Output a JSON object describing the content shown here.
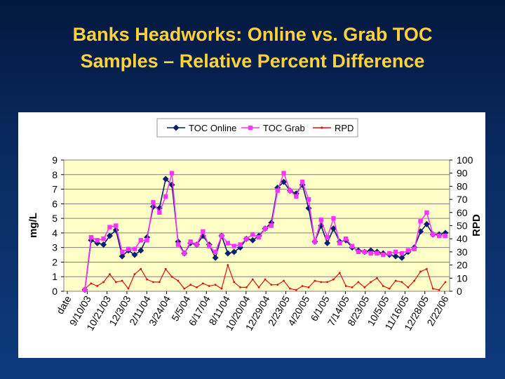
{
  "slide": {
    "title_line1": "Banks Headworks: Online vs. Grab TOC",
    "title_line2": "Samples – Relative Percent Difference"
  },
  "colors": {
    "background": "#0a2c63",
    "title": "#ffd23c",
    "plot_area": "#ffffc8",
    "toc_online": "#0a1f6e",
    "toc_grab": "#ff33ff",
    "rpd": "#dd1111"
  },
  "chart_data": {
    "type": "line",
    "title": "",
    "xlabel": "",
    "ylabel": "mg/L",
    "y2label": "RPD",
    "ylim": [
      0,
      9
    ],
    "y2lim": [
      0,
      100
    ],
    "yticks": [
      "0",
      "1",
      "2",
      "3",
      "4",
      "5",
      "6",
      "7",
      "8",
      "9"
    ],
    "y2ticks": [
      "0",
      "10",
      "20",
      "30",
      "40",
      "50",
      "60",
      "70",
      "80",
      "90",
      "100"
    ],
    "grid": true,
    "legend_position": "top",
    "x_tick_labels": [
      "date",
      "9/10/03",
      "10/21/03",
      "12/3/03",
      "2/11/04",
      "3/24/04",
      "5/5/04",
      "6/17/04",
      "8/11/04",
      "10/20/04",
      "12/29/04",
      "2/23/05",
      "4/20/05",
      "6/1/05",
      "7/14/05",
      "8/23/05",
      "10/5/05",
      "11/16/05",
      "12/28/05",
      "2/22/06"
    ],
    "series": [
      {
        "name": "TOC Online",
        "axis": "left",
        "values": [
          0.1,
          3.5,
          3.3,
          3.2,
          3.8,
          4.2,
          2.4,
          2.8,
          2.5,
          2.8,
          3.7,
          5.8,
          5.7,
          7.7,
          7.3,
          3.4,
          2.6,
          3.3,
          3.2,
          3.8,
          3.2,
          2.3,
          3.8,
          2.6,
          2.7,
          3.0,
          3.6,
          3.5,
          3.8,
          4.3,
          4.7,
          7.1,
          7.5,
          6.9,
          6.7,
          7.3,
          5.7,
          3.4,
          4.5,
          3.3,
          4.3,
          3.4,
          3.5,
          3.0,
          2.8,
          2.7,
          2.8,
          2.7,
          2.6,
          2.5,
          2.4,
          2.3,
          2.7,
          3.0,
          4.1,
          4.6,
          3.9,
          3.9,
          4.0
        ]
      },
      {
        "name": "TOC Grab",
        "axis": "left",
        "values": [
          0.1,
          3.7,
          3.5,
          3.6,
          4.4,
          4.5,
          2.7,
          2.9,
          2.9,
          3.5,
          3.5,
          6.1,
          5.4,
          6.5,
          8.1,
          3.2,
          2.6,
          3.4,
          3.2,
          4.1,
          3.1,
          2.7,
          3.8,
          3.3,
          3.1,
          3.2,
          3.6,
          3.9,
          3.7,
          4.3,
          4.5,
          6.9,
          8.1,
          6.9,
          6.5,
          7.5,
          6.3,
          3.4,
          4.9,
          3.7,
          5.0,
          3.3,
          3.6,
          3.1,
          2.7,
          2.7,
          2.6,
          2.6,
          2.5,
          2.6,
          2.7,
          2.6,
          2.8,
          2.9,
          4.8,
          5.4,
          3.9,
          3.8,
          3.8
        ]
      },
      {
        "name": "RPD",
        "axis": "right",
        "values": [
          2,
          6,
          4,
          7,
          13,
          7,
          8,
          2,
          13,
          17,
          9,
          7,
          7,
          17,
          11,
          8,
          2,
          5,
          3,
          6,
          4,
          5,
          2,
          20,
          7,
          3,
          3,
          9,
          3,
          9,
          5,
          5,
          8,
          2,
          1,
          4,
          3,
          8,
          7,
          7,
          9,
          14,
          4,
          3,
          7,
          3,
          7,
          10,
          4,
          2,
          8,
          7,
          3,
          8,
          15,
          17,
          2,
          1,
          7
        ]
      }
    ]
  }
}
